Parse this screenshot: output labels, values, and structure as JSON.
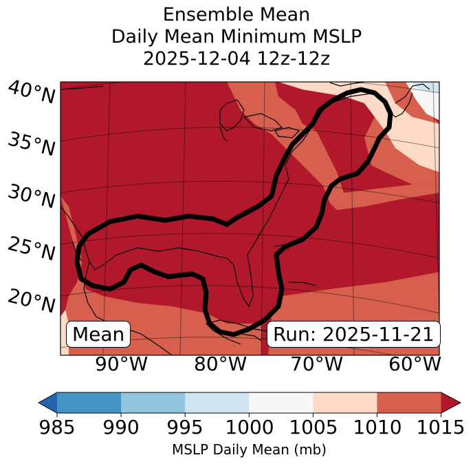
{
  "title": {
    "line1": "Ensemble Mean",
    "line2": "Daily Mean Minimum MSLP",
    "line3": "2025-12-04 12z-12z"
  },
  "map": {
    "lat_labels": [
      "40°N",
      "35°N",
      "30°N",
      "25°N",
      "20°N"
    ],
    "lon_labels": [
      "90°W",
      "80°W",
      "70°W",
      "60°W"
    ],
    "mean_label": "Mean",
    "run_label": "Run: 2025-11-21",
    "fill_colors": {
      "c1010_1015": "#b2182b",
      "c1005_1010": "#d6604d",
      "c1000_1005": "#fddbc7",
      "c995_1000": "#f7f7f7",
      "c990_995": "#d1e5f0"
    }
  },
  "colorbar": {
    "ticks": [
      "985",
      "990",
      "995",
      "1000",
      "1005",
      "1010",
      "1015"
    ],
    "colors": [
      "#2166ac",
      "#4393c3",
      "#92c5de",
      "#d1e5f0",
      "#f7f7f7",
      "#fddbc7",
      "#d6604d",
      "#b2182b"
    ],
    "label": "MSLP Daily Mean (mb)"
  }
}
